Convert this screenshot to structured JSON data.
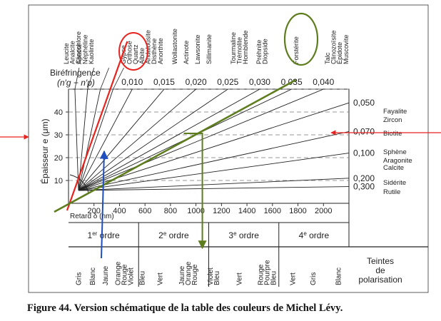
{
  "chart_data": {
    "type": "line",
    "title": "",
    "caption": "Figure 44. Version schématique de la table des couleurs de Michel Lévy.",
    "xlabel": "Retard δ (nm)",
    "ylabel": "Épaisseur e (μm)",
    "xlim": [
      0,
      2200
    ],
    "ylim": [
      0,
      50
    ],
    "x_ticks": [
      "200",
      "400",
      "600",
      "800",
      "1000",
      "1200",
      "1400",
      "1600",
      "1800",
      "2000"
    ],
    "x_tick_values": [
      200,
      400,
      600,
      800,
      1000,
      1200,
      1400,
      1600,
      1800,
      2000
    ],
    "y_ticks": [
      "10",
      "20",
      "30",
      "40"
    ],
    "y_tick_values": [
      10,
      20,
      30,
      40
    ],
    "gridlines_dashed": [
      10,
      20,
      30,
      40,
      50
    ],
    "birefringence_label": "Biréfringence",
    "birefringence_formula": "(n′g − n′p)",
    "birefringence_top": [
      {
        "label": "0,010",
        "value": 0.01
      },
      {
        "label": "0,015",
        "value": 0.015
      },
      {
        "label": "0,020",
        "value": 0.02
      },
      {
        "label": "0,025",
        "value": 0.025
      },
      {
        "label": "0,030",
        "value": 0.03
      },
      {
        "label": "0,035",
        "value": 0.035
      },
      {
        "label": "0,040",
        "value": 0.04
      }
    ],
    "birefringence_right": [
      {
        "label": "0,050",
        "value": 0.05
      },
      {
        "label": "0,070",
        "value": 0.07
      },
      {
        "label": "0,100",
        "value": 0.1
      },
      {
        "label": "0,200",
        "value": 0.2
      },
      {
        "label": "0,300",
        "value": 0.3
      }
    ],
    "low_birefringence_lines": [
      0.001,
      0.003,
      0.005,
      0.007
    ],
    "mineral_columns": [
      [
        "Leucite",
        "Analcite",
        "Clinochlore"
      ],
      [
        "Apatite",
        "Néphéline",
        "Kaolinite"
      ],
      [
        "Gypse",
        "Orthose",
        "Quartz",
        "Albite",
        "Andalousite",
        "Disthène"
      ],
      [
        "Anorthite"
      ],
      [
        "Wollastonite"
      ],
      [
        "Actinote"
      ],
      [
        "Lawsonite"
      ],
      [
        "Sillimanite"
      ],
      [
        "Tourmaline",
        "Trémolite",
        "Hornblende"
      ],
      [
        "Préhnite",
        "Diopside"
      ],
      [
        "Forstérite"
      ],
      [
        "Talc",
        "Clinozoïsite",
        "Épidote",
        "Muscovite"
      ]
    ],
    "right_minerals": [
      {
        "names": [
          "Fayalite",
          "Zircon"
        ]
      },
      {
        "names": [
          "Biotite"
        ]
      },
      {
        "names": []
      },
      {
        "names": [
          "Sphène",
          "Aragonite",
          "Calcite"
        ]
      },
      {
        "names": [
          "Sidérite"
        ]
      },
      {
        "names": [
          "Rutile"
        ]
      }
    ],
    "orders": [
      {
        "label": "1er ordre",
        "range": [
          0,
          550
        ]
      },
      {
        "label": "2e ordre",
        "range": [
          550,
          1100
        ]
      },
      {
        "label": "3e ordre",
        "range": [
          1100,
          1650
        ]
      },
      {
        "label": "4e ordre",
        "range": [
          1650,
          2200
        ]
      }
    ],
    "tints_header": "Teintes de polarisation",
    "tints": [
      {
        "label": "Gris",
        "x": 80
      },
      {
        "label": "Blanc",
        "x": 190
      },
      {
        "label": "Jaune",
        "x": 290
      },
      {
        "label": "Orange Rouge Violet",
        "x": 440
      },
      {
        "label": "Bleu",
        "x": 580
      },
      {
        "label": "Vert",
        "x": 720
      },
      {
        "label": "Jaune Orange Rouge",
        "x": 940
      },
      {
        "label": "Violet Bleu",
        "x": 1140
      },
      {
        "label": "Vert",
        "x": 1340
      },
      {
        "label": "Rouge Pourpre Bleu",
        "x": 1560
      },
      {
        "label": "Vert",
        "x": 1760
      },
      {
        "label": "Gris",
        "x": 1920
      },
      {
        "label": "Blanc",
        "x": 2120
      }
    ],
    "annotations": {
      "red_line": {
        "birefringence": 0.009,
        "color": "#e8231e"
      },
      "highlight_line": {
        "birefringence": 0.035,
        "color": "#5e7d1e"
      },
      "thickness_arrow": {
        "thickness": 30,
        "color": "#e8231e"
      },
      "retard_arrow": {
        "retard": 1050,
        "color": "#5e7d1e"
      },
      "blue_arrow": {
        "retard": 280,
        "color": "#1f4fbf"
      },
      "circles": [
        "Quartz",
        "Forstérite"
      ]
    }
  }
}
